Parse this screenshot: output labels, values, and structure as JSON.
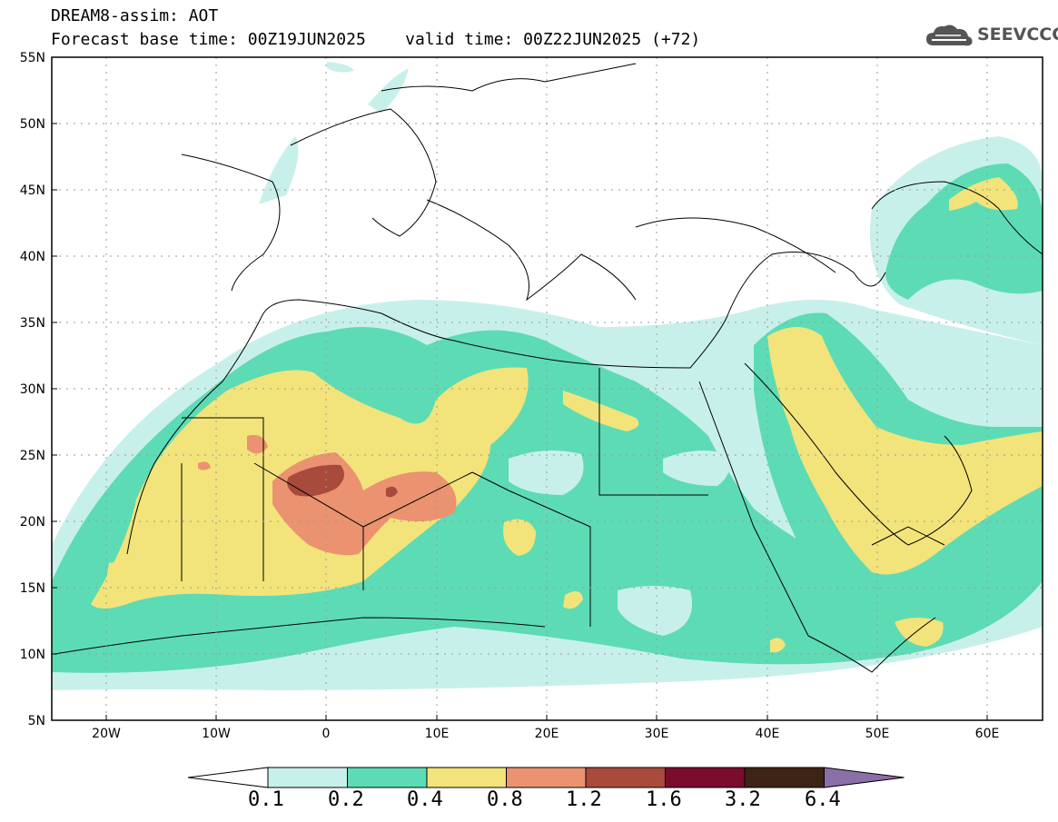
{
  "header": {
    "line1": "DREAM8-assim: AOT",
    "line2": "Forecast base time: 00Z19JUN2025    valid time: 00Z22JUN2025 (+72)"
  },
  "logo": {
    "text": "SEEVCCC",
    "icon": "cloud-icon"
  },
  "map": {
    "lon_range": [
      -25,
      65
    ],
    "lat_range": [
      5,
      55
    ],
    "lat_labels": [
      "55N",
      "50N",
      "45N",
      "40N",
      "35N",
      "30N",
      "25N",
      "20N",
      "15N",
      "10N",
      "5N"
    ],
    "lon_labels": [
      "20W",
      "10W",
      "0",
      "10E",
      "20E",
      "30E",
      "40E",
      "50E",
      "60E"
    ]
  },
  "colorbar": {
    "labels": [
      "0.1",
      "0.2",
      "0.4",
      "0.8",
      "1.2",
      "1.6",
      "3.2",
      "6.4"
    ],
    "colors": [
      "#ffffff",
      "#c8f0ea",
      "#5ddbb5",
      "#f2e47a",
      "#eb9270",
      "#a84a3c",
      "#7a0c2e",
      "#3d2416",
      "#8b6fa8"
    ]
  }
}
